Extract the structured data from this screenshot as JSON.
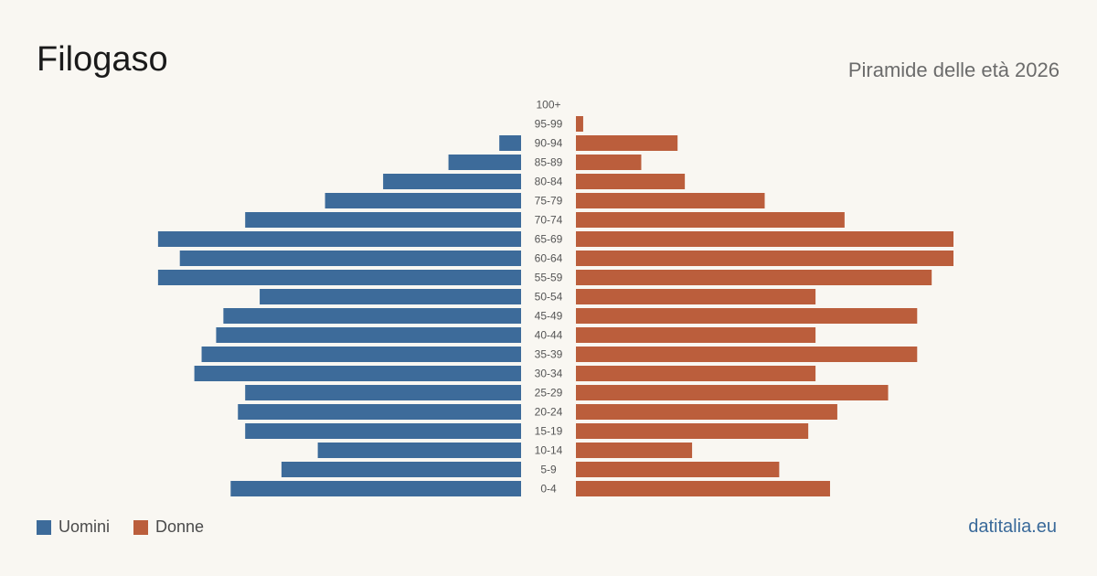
{
  "header": {
    "title": "Filogaso",
    "subtitle": "Piramide delle età 2026"
  },
  "legend": {
    "men_label": "Uomini",
    "women_label": "Donne"
  },
  "footer": {
    "source": "datitalia.eu"
  },
  "colors": {
    "men": "#3d6b9a",
    "women": "#bb5e3c"
  },
  "chart_data": {
    "type": "bar",
    "orientation": "horizontal",
    "layout": "population-pyramid",
    "categories": [
      "100+",
      "95-99",
      "90-94",
      "85-89",
      "80-84",
      "75-79",
      "70-74",
      "65-69",
      "60-64",
      "55-59",
      "50-54",
      "45-49",
      "40-44",
      "35-39",
      "30-34",
      "25-29",
      "20-24",
      "15-19",
      "10-14",
      "5-9",
      "0-4"
    ],
    "series": [
      {
        "name": "Uomini",
        "side": "left",
        "values": [
          0,
          0,
          3,
          10,
          19,
          27,
          38,
          50,
          47,
          50,
          36,
          41,
          42,
          44,
          45,
          38,
          39,
          38,
          28,
          33,
          40
        ]
      },
      {
        "name": "Donne",
        "side": "right",
        "values": [
          0,
          1,
          14,
          9,
          15,
          26,
          37,
          52,
          52,
          49,
          33,
          47,
          33,
          47,
          33,
          43,
          36,
          32,
          16,
          28,
          35
        ]
      }
    ],
    "max_value": 52,
    "xlabel": "",
    "ylabel": "",
    "grid": false,
    "legend_position": "bottom-left"
  }
}
